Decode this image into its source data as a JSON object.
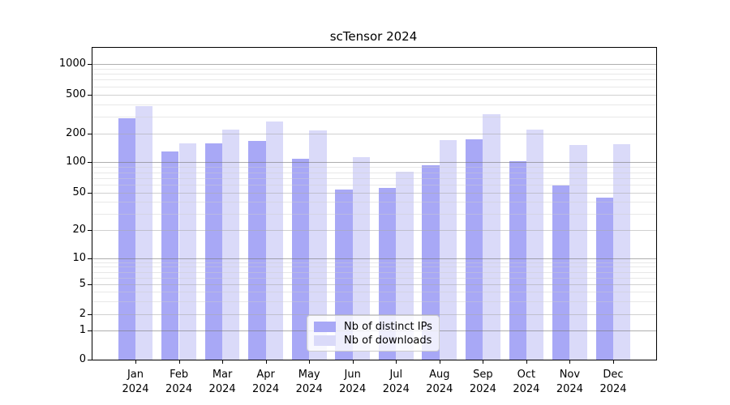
{
  "title": "scTensor 2024",
  "chart_data": {
    "type": "bar",
    "title": "scTensor 2024",
    "categories": [
      "Jan 2024",
      "Feb 2024",
      "Mar 2024",
      "Apr 2024",
      "May 2024",
      "Jun 2024",
      "Jul 2024",
      "Aug 2024",
      "Sep 2024",
      "Oct 2024",
      "Nov 2024",
      "Dec 2024"
    ],
    "x_tick_lines": [
      [
        "Jan",
        "2024"
      ],
      [
        "Feb",
        "2024"
      ],
      [
        "Mar",
        "2024"
      ],
      [
        "Apr",
        "2024"
      ],
      [
        "May",
        "2024"
      ],
      [
        "Jun",
        "2024"
      ],
      [
        "Jul",
        "2024"
      ],
      [
        "Aug",
        "2024"
      ],
      [
        "Sep",
        "2024"
      ],
      [
        "Oct",
        "2024"
      ],
      [
        "Nov",
        "2024"
      ],
      [
        "Dec",
        "2024"
      ]
    ],
    "series": [
      {
        "name": "Nb of distinct IPs",
        "color": "#a8a8f6",
        "values": [
          290,
          130,
          160,
          170,
          108,
          54,
          56,
          93,
          174,
          103,
          59,
          45
        ]
      },
      {
        "name": "Nb of downloads",
        "color": "#dadaf9",
        "values": [
          380,
          160,
          220,
          265,
          215,
          114,
          81,
          173,
          315,
          222,
          154,
          157
        ]
      }
    ],
    "xlabel": "",
    "ylabel": "",
    "yscale": "symlog",
    "y_ticks": [
      0,
      1,
      2,
      5,
      10,
      20,
      50,
      100,
      200,
      500,
      1000
    ],
    "y_minor_gridlines": [
      3,
      4,
      6,
      7,
      8,
      9,
      30,
      40,
      60,
      70,
      80,
      90,
      300,
      400,
      600,
      700,
      800,
      900
    ],
    "ylim": [
      0,
      1400
    ],
    "grid": true,
    "legend_position": "lower center"
  }
}
